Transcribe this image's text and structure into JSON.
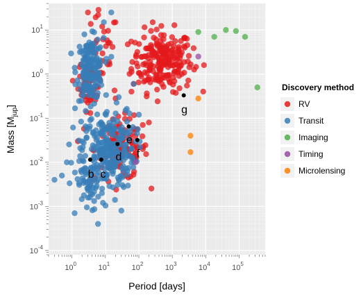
{
  "chart_data": {
    "type": "scatter",
    "title": "",
    "xlabel": "Period [days]",
    "ylabel": "Mass [M_jup]",
    "ylabel_main": "Mass [M",
    "ylabel_sub": "jup",
    "ylabel_close": "]",
    "x_scale": "log",
    "y_scale": "log",
    "xlim": [
      0.2,
      600000
    ],
    "ylim": [
      8e-05,
      40
    ],
    "grid": true,
    "legend_position": "right",
    "x_ticks": [
      {
        "value": 1,
        "base": "10",
        "exp": "0"
      },
      {
        "value": 10,
        "base": "10",
        "exp": "1"
      },
      {
        "value": 100,
        "base": "10",
        "exp": "2"
      },
      {
        "value": 1000,
        "base": "10",
        "exp": "3"
      },
      {
        "value": 10000,
        "base": "10",
        "exp": "4"
      },
      {
        "value": 100000,
        "base": "10",
        "exp": "5"
      }
    ],
    "y_ticks": [
      {
        "value": 0.0001,
        "base": "10",
        "exp": "-4"
      },
      {
        "value": 0.001,
        "base": "10",
        "exp": "-3"
      },
      {
        "value": 0.01,
        "base": "10",
        "exp": "-2"
      },
      {
        "value": 0.1,
        "base": "10",
        "exp": "-1"
      },
      {
        "value": 1,
        "base": "10",
        "exp": "0"
      },
      {
        "value": 10,
        "base": "10",
        "exp": "1"
      }
    ],
    "legend_title": "Discovery method",
    "series": [
      {
        "name": "RV",
        "color": "#e41a1c",
        "clusters": [
          {
            "cx": 500,
            "cy": 2.0,
            "sx": 0.45,
            "sy": 0.35,
            "n": 230
          },
          {
            "cx": 3.5,
            "cy": 0.6,
            "sx": 0.18,
            "sy": 0.3,
            "n": 55
          },
          {
            "cx": 30,
            "cy": 0.02,
            "sx": 0.4,
            "sy": 0.35,
            "n": 110
          },
          {
            "cx": 8,
            "cy": 2.5,
            "sx": 0.25,
            "sy": 0.5,
            "n": 25
          }
        ],
        "points": [
          [
            3,
            25
          ],
          [
            8,
            12
          ],
          [
            20,
            15
          ],
          [
            1.5,
            0.03
          ],
          [
            4,
            0.004
          ],
          [
            200,
            0.08
          ],
          [
            60,
            0.4
          ]
        ]
      },
      {
        "name": "Transit",
        "color": "#377eb8",
        "clusters": [
          {
            "cx": 3.5,
            "cy": 1.3,
            "sx": 0.2,
            "sy": 0.35,
            "n": 170
          },
          {
            "cx": 12,
            "cy": 0.02,
            "sx": 0.4,
            "sy": 0.45,
            "n": 260
          },
          {
            "cx": 4,
            "cy": 0.003,
            "sx": 0.3,
            "sy": 0.35,
            "n": 60
          }
        ],
        "points": [
          [
            0.5,
            0.005
          ],
          [
            0.7,
            0.01
          ],
          [
            0.3,
            0.004
          ],
          [
            15,
            25
          ],
          [
            9,
            15
          ],
          [
            1.2,
            0.0007
          ],
          [
            6,
            0.0004
          ],
          [
            30,
            0.0008
          ],
          [
            40,
            0.15
          ],
          [
            25,
            0.3
          ],
          [
            70,
            0.6
          ],
          [
            100,
            0.12
          ]
        ]
      },
      {
        "name": "Imaging",
        "color": "#4daf4a",
        "points": [
          [
            6000,
            9
          ],
          [
            18000,
            7
          ],
          [
            40000,
            10
          ],
          [
            80000,
            9.5
          ],
          [
            150000,
            7
          ],
          [
            350000,
            0.5
          ]
        ]
      },
      {
        "name": "Timing",
        "color": "#984ea3",
        "points": [
          [
            6000,
            2.5
          ],
          [
            80,
            0.01
          ]
        ]
      },
      {
        "name": "Microlensing",
        "color": "#ff7f00",
        "points": [
          [
            6000,
            0.28
          ],
          [
            3500,
            0.04
          ],
          [
            3500,
            0.017
          ]
        ]
      }
    ],
    "annotations": [
      {
        "label": "b",
        "x": 3.5,
        "y": 0.0115,
        "lx": 3.7,
        "ly": 0.0045
      },
      {
        "label": "c",
        "x": 7.5,
        "y": 0.0115,
        "lx": 8.5,
        "ly": 0.0045
      },
      {
        "label": "d",
        "x": 23,
        "y": 0.026,
        "lx": 25,
        "ly": 0.011
      },
      {
        "label": "e",
        "x": 50,
        "y": 0.065,
        "lx": 52,
        "ly": 0.027
      },
      {
        "label": "f",
        "x": 90,
        "y": 0.032,
        "lx": 95,
        "ly": 0.013
      },
      {
        "label": "g",
        "x": 2200,
        "y": 0.33,
        "lx": 2300,
        "ly": 0.13
      }
    ]
  }
}
